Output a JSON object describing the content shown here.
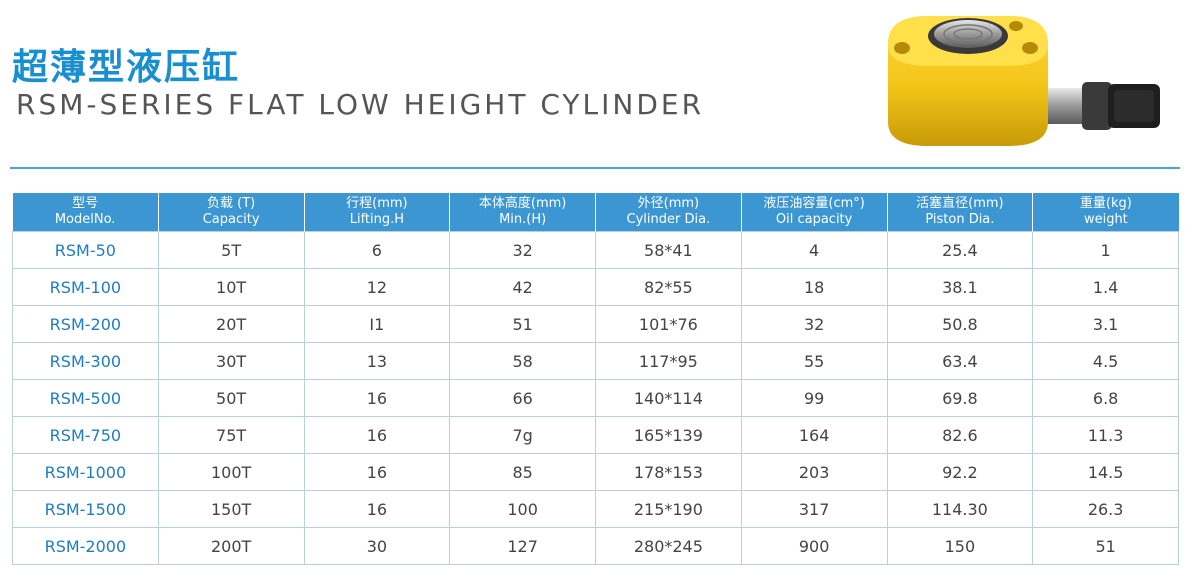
{
  "header": {
    "title_cn": "超薄型液压缸",
    "title_en": "RSM-SERIES FLAT LOW HEIGHT CYLINDER"
  },
  "colors": {
    "accent": "#1a8fcf",
    "table_header": "#3c96d2",
    "model_text": "#1f7cc1",
    "cylinder_body": "#f2c418"
  },
  "product_image": {
    "icon": "yellow-flat-hydraulic-cylinder"
  },
  "table": {
    "columns": [
      {
        "cn": "型号",
        "en": "ModelNo."
      },
      {
        "cn": "负载 (T)",
        "en": "Capacity"
      },
      {
        "cn": "行程(mm)",
        "en": "Lifting.H"
      },
      {
        "cn": "本体高度(mm)",
        "en": "Min.(H)"
      },
      {
        "cn": "外径(mm)",
        "en": "Cylinder Dia."
      },
      {
        "cn": "液压油容量(cm°)",
        "en": "Oil capacity"
      },
      {
        "cn": "活塞直径(mm)",
        "en": "Piston Dia."
      },
      {
        "cn": "重量(kg)",
        "en": "weight"
      }
    ],
    "rows": [
      [
        "RSM-50",
        "5T",
        "6",
        "32",
        "58*41",
        "4",
        "25.4",
        "1"
      ],
      [
        "RSM-100",
        "10T",
        "12",
        "42",
        "82*55",
        "18",
        "38.1",
        "1.4"
      ],
      [
        "RSM-200",
        "20T",
        "I1",
        "51",
        "101*76",
        "32",
        "50.8",
        "3.1"
      ],
      [
        "RSM-300",
        "30T",
        "13",
        "58",
        "117*95",
        "55",
        "63.4",
        "4.5"
      ],
      [
        "RSM-500",
        "50T",
        "16",
        "66",
        "140*114",
        "99",
        "69.8",
        "6.8"
      ],
      [
        "RSM-750",
        "75T",
        "16",
        "7g",
        "165*139",
        "164",
        "82.6",
        "11.3"
      ],
      [
        "RSM-1000",
        "100T",
        "16",
        "85",
        "178*153",
        "203",
        "92.2",
        "14.5"
      ],
      [
        "RSM-1500",
        "150T",
        "16",
        "100",
        "215*190",
        "317",
        "114.30",
        "26.3"
      ],
      [
        "RSM-2000",
        "200T",
        "30",
        "127",
        "280*245",
        "900",
        "150",
        "51"
      ]
    ]
  }
}
